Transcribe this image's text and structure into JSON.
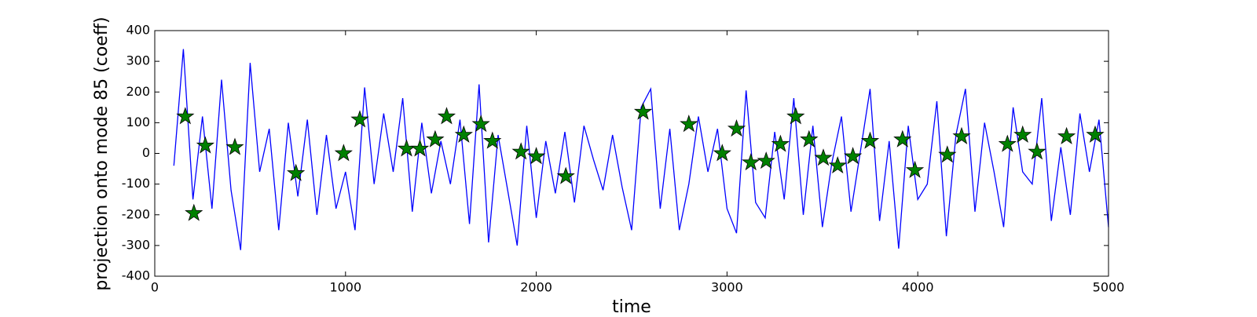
{
  "chart_data": {
    "type": "line",
    "xlabel": "time",
    "ylabel": "projection onto mode 85 (coeff)",
    "xlim": [
      0,
      5000
    ],
    "xticks": [
      0,
      1000,
      2000,
      3000,
      4000,
      5000
    ],
    "ylim": [
      -400,
      400
    ],
    "yticks": [
      -400,
      -300,
      -200,
      -100,
      0,
      100,
      200,
      300,
      400
    ],
    "series": [
      {
        "color": "#0000ff",
        "x": [
          100,
          150,
          200,
          250,
          300,
          350,
          400,
          450,
          500,
          550,
          600,
          650,
          700,
          750,
          800,
          850,
          900,
          950,
          1000,
          1050,
          1100,
          1150,
          1200,
          1250,
          1300,
          1350,
          1400,
          1450,
          1500,
          1550,
          1600,
          1650,
          1700,
          1750,
          1800,
          1850,
          1900,
          1950,
          2000,
          2050,
          2100,
          2150,
          2200,
          2250,
          2300,
          2350,
          2400,
          2450,
          2500,
          2550,
          2600,
          2650,
          2700,
          2750,
          2800,
          2850,
          2900,
          2950,
          3000,
          3050,
          3100,
          3150,
          3200,
          3250,
          3300,
          3350,
          3400,
          3450,
          3500,
          3550,
          3600,
          3650,
          3700,
          3750,
          3800,
          3850,
          3900,
          3950,
          4000,
          4050,
          4100,
          4150,
          4200,
          4250,
          4300,
          4350,
          4400,
          4450,
          4500,
          4550,
          4600,
          4650,
          4700,
          4750,
          4800,
          4850,
          4900,
          4950,
          5000
        ],
        "values": [
          -40,
          340,
          -150,
          120,
          -180,
          240,
          -120,
          -315,
          295,
          -60,
          80,
          -250,
          100,
          -140,
          110,
          -200,
          60,
          -180,
          -60,
          -250,
          215,
          -100,
          130,
          -60,
          180,
          -190,
          100,
          -130,
          40,
          -100,
          110,
          -230,
          225,
          -290,
          60,
          -120,
          -300,
          90,
          -210,
          40,
          -130,
          70,
          -160,
          90,
          -20,
          -120,
          60,
          -110,
          -250,
          150,
          210,
          -180,
          80,
          -250,
          -100,
          120,
          -60,
          80,
          -180,
          -260,
          205,
          -160,
          -210,
          70,
          -150,
          180,
          -200,
          90,
          -240,
          -30,
          120,
          -190,
          10,
          210,
          -220,
          40,
          -310,
          90,
          -150,
          -100,
          170,
          -270,
          60,
          210,
          -190,
          100,
          -60,
          -240,
          150,
          -60,
          -100,
          180,
          -220,
          20,
          -200,
          130,
          -60,
          110,
          -240
        ]
      },
      {
        "color": "#008000",
        "marker": "star",
        "x": [
          160,
          205,
          265,
          420,
          740,
          990,
          1075,
          1320,
          1390,
          1470,
          1530,
          1620,
          1710,
          1770,
          1920,
          2000,
          2155,
          2560,
          2800,
          2975,
          3050,
          3125,
          3205,
          3280,
          3360,
          3430,
          3505,
          3580,
          3660,
          3750,
          3920,
          3985,
          4155,
          4230,
          4470,
          4550,
          4625,
          4780,
          4930
        ],
        "values": [
          120,
          -195,
          25,
          20,
          -65,
          0,
          110,
          15,
          15,
          45,
          120,
          60,
          95,
          40,
          5,
          -10,
          -75,
          135,
          95,
          0,
          80,
          -30,
          -25,
          30,
          120,
          45,
          -15,
          -40,
          -10,
          40,
          45,
          -55,
          -5,
          55,
          30,
          60,
          5,
          55,
          60
        ]
      }
    ]
  }
}
